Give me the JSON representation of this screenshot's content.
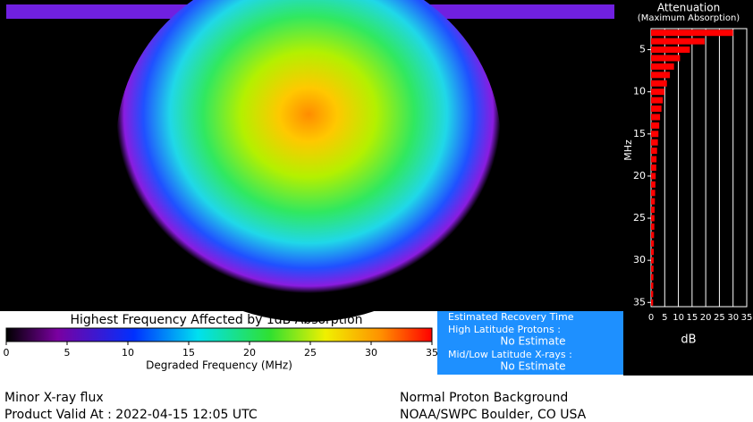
{
  "colorbar": {
    "title": "Highest Frequency Affected by 1dB Absorption",
    "xlabel": "Degraded Frequency (MHz)",
    "xlim": [
      0,
      35
    ],
    "xticks": [
      0,
      5,
      10,
      15,
      20,
      25,
      30,
      35
    ]
  },
  "chart_data": {
    "type": "bar",
    "orientation": "horizontal",
    "title": "Attenuation",
    "subtitle": "(Maximum Absorption)",
    "ylabel": "MHz",
    "xlabel": "dB",
    "color": "#ff0000",
    "grid": true,
    "y_inverted": true,
    "categories": [
      3,
      4,
      5,
      6,
      7,
      8,
      9,
      10,
      11,
      12,
      13,
      14,
      15,
      16,
      17,
      18,
      19,
      20,
      21,
      22,
      23,
      24,
      25,
      26,
      27,
      28,
      29,
      30,
      31,
      32,
      33,
      34,
      35
    ],
    "values": [
      30,
      19.6,
      14.2,
      10.6,
      8.4,
      6.9,
      5.8,
      4.9,
      4.3,
      3.8,
      3.3,
      3.0,
      2.7,
      2.5,
      2.2,
      2.0,
      1.9,
      1.7,
      1.6,
      1.5,
      1.4,
      1.3,
      1.25,
      1.2,
      1.1,
      1.05,
      1.0,
      0.95,
      0.9,
      0.86,
      0.82,
      0.78,
      0.75
    ],
    "xlim": [
      0,
      35
    ],
    "xticks": [
      0,
      5,
      10,
      15,
      20,
      25,
      30,
      35
    ],
    "ylim": [
      2.5,
      35.5
    ],
    "yticks": [
      5,
      10,
      15,
      20,
      25,
      30,
      35
    ]
  },
  "recovery": {
    "title": "Estimated Recovery Time",
    "high_label": "High Latitude Protons :",
    "high_value": "No Estimate",
    "low_label": "Mid/Low Latitude X-rays :",
    "low_value": "No Estimate"
  },
  "footer": {
    "left_1": "Minor X-ray flux",
    "left_2": "Product Valid At : 2022-04-15 12:05 UTC",
    "right_1": "Normal Proton Background",
    "right_2": "NOAA/SWPC Boulder, CO USA"
  }
}
